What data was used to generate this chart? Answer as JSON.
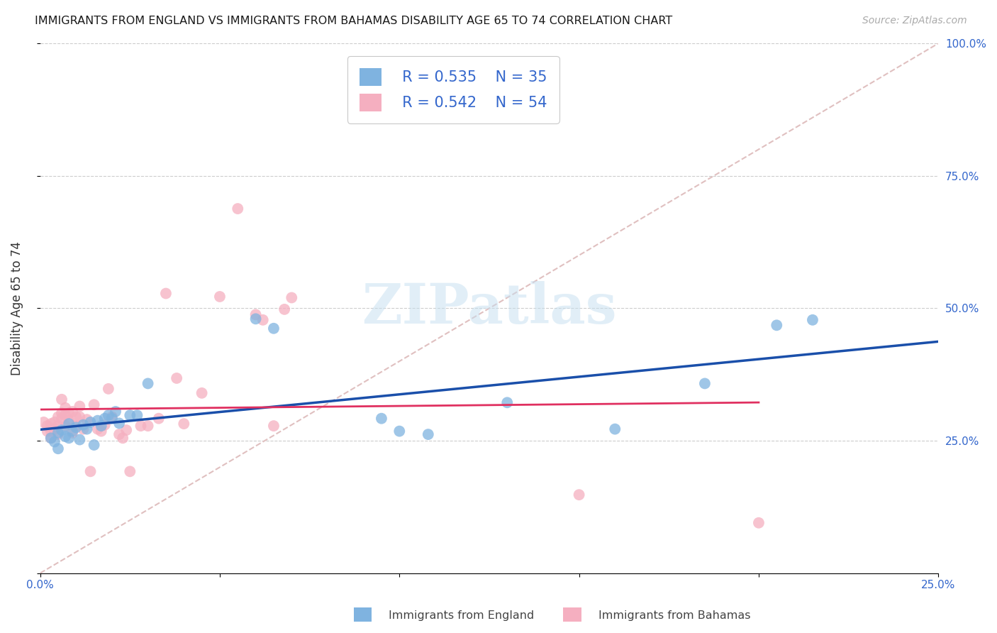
{
  "title": "IMMIGRANTS FROM ENGLAND VS IMMIGRANTS FROM BAHAMAS DISABILITY AGE 65 TO 74 CORRELATION CHART",
  "source": "Source: ZipAtlas.com",
  "ylabel": "Disability Age 65 to 74",
  "xlim": [
    0.0,
    0.25
  ],
  "ylim": [
    0.0,
    1.0
  ],
  "blue_R": 0.535,
  "blue_N": 35,
  "pink_R": 0.542,
  "pink_N": 54,
  "blue_color": "#7fb3e0",
  "pink_color": "#f5afc0",
  "blue_line_color": "#1a4faa",
  "pink_line_color": "#e03060",
  "diag_color": "#e0c0c0",
  "legend_text_color": "#3366cc",
  "watermark": "ZIPatlas",
  "blue_scatter_x": [
    0.003,
    0.004,
    0.005,
    0.005,
    0.006,
    0.007,
    0.008,
    0.008,
    0.009,
    0.01,
    0.011,
    0.012,
    0.013,
    0.014,
    0.015,
    0.016,
    0.017,
    0.018,
    0.019,
    0.02,
    0.021,
    0.022,
    0.025,
    0.027,
    0.03,
    0.06,
    0.065,
    0.095,
    0.1,
    0.108,
    0.13,
    0.16,
    0.185,
    0.205,
    0.215
  ],
  "blue_scatter_y": [
    0.255,
    0.248,
    0.235,
    0.265,
    0.27,
    0.258,
    0.255,
    0.282,
    0.268,
    0.275,
    0.252,
    0.28,
    0.272,
    0.285,
    0.242,
    0.288,
    0.278,
    0.292,
    0.298,
    0.292,
    0.305,
    0.283,
    0.298,
    0.298,
    0.358,
    0.48,
    0.462,
    0.292,
    0.268,
    0.262,
    0.322,
    0.272,
    0.358,
    0.468,
    0.478
  ],
  "pink_scatter_x": [
    0.001,
    0.002,
    0.002,
    0.003,
    0.003,
    0.003,
    0.004,
    0.004,
    0.005,
    0.005,
    0.005,
    0.006,
    0.006,
    0.006,
    0.007,
    0.007,
    0.007,
    0.008,
    0.008,
    0.009,
    0.009,
    0.01,
    0.01,
    0.011,
    0.011,
    0.012,
    0.013,
    0.014,
    0.015,
    0.016,
    0.017,
    0.018,
    0.019,
    0.02,
    0.022,
    0.023,
    0.024,
    0.025,
    0.028,
    0.03,
    0.033,
    0.035,
    0.038,
    0.04,
    0.045,
    0.05,
    0.055,
    0.06,
    0.062,
    0.065,
    0.068,
    0.07,
    0.15,
    0.2
  ],
  "pink_scatter_y": [
    0.285,
    0.268,
    0.278,
    0.255,
    0.268,
    0.282,
    0.285,
    0.272,
    0.295,
    0.278,
    0.262,
    0.302,
    0.328,
    0.292,
    0.298,
    0.312,
    0.278,
    0.302,
    0.288,
    0.265,
    0.305,
    0.295,
    0.278,
    0.315,
    0.295,
    0.272,
    0.29,
    0.192,
    0.318,
    0.272,
    0.268,
    0.28,
    0.348,
    0.295,
    0.262,
    0.255,
    0.27,
    0.192,
    0.278,
    0.278,
    0.292,
    0.528,
    0.368,
    0.282,
    0.34,
    0.522,
    0.688,
    0.488,
    0.478,
    0.278,
    0.498,
    0.52,
    0.148,
    0.095
  ]
}
